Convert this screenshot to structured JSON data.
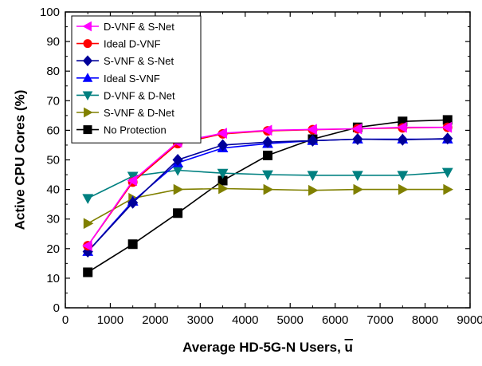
{
  "chart_data": {
    "type": "line",
    "xlabel": "Average HD-5G-N Users, ",
    "xlabel_symbol": "u",
    "ylabel": "Active CPU Cores (%)",
    "xlim": [
      0,
      9000
    ],
    "ylim": [
      0,
      100
    ],
    "xticks": [
      0,
      1000,
      2000,
      3000,
      4000,
      5000,
      6000,
      7000,
      8000,
      9000
    ],
    "yticks": [
      0,
      10,
      20,
      30,
      40,
      50,
      60,
      70,
      80,
      90,
      100
    ],
    "grid": false,
    "legend_position": "top-left",
    "x": [
      500,
      1500,
      2500,
      3500,
      4500,
      5500,
      6500,
      7500,
      8500
    ],
    "series": [
      {
        "name": "D-VNF & S-Net",
        "marker": "triangle-left",
        "color": "#ff00ff",
        "values": [
          21,
          43,
          56,
          59,
          60,
          60.3,
          60.5,
          61,
          61
        ]
      },
      {
        "name": "Ideal D-VNF",
        "marker": "circle",
        "color": "#ff0000",
        "values": [
          21,
          42.5,
          55.5,
          58.8,
          59.8,
          60.2,
          60.5,
          60.8,
          61
        ]
      },
      {
        "name": "S-VNF & S-Net",
        "marker": "diamond",
        "color": "#000099",
        "values": [
          19,
          35.5,
          50,
          55,
          56,
          56.5,
          57,
          56.8,
          57.2
        ]
      },
      {
        "name": "Ideal S-VNF",
        "marker": "triangle-up",
        "color": "#0000ff",
        "values": [
          19,
          36,
          49,
          54,
          55.5,
          56.5,
          57,
          57,
          57
        ]
      },
      {
        "name": "D-VNF & D-Net",
        "marker": "triangle-down",
        "color": "#008080",
        "values": [
          37,
          44.5,
          46.5,
          45.5,
          45,
          44.8,
          44.8,
          44.8,
          45.8
        ]
      },
      {
        "name": "S-VNF & D-Net",
        "marker": "triangle-right",
        "color": "#808000",
        "values": [
          28.5,
          37,
          40,
          40.3,
          40,
          39.7,
          40,
          40,
          40
        ]
      },
      {
        "name": "No Protection",
        "marker": "square",
        "color": "#000000",
        "values": [
          12,
          21.5,
          32,
          43,
          51.5,
          57,
          61,
          63,
          63.5
        ]
      }
    ]
  }
}
